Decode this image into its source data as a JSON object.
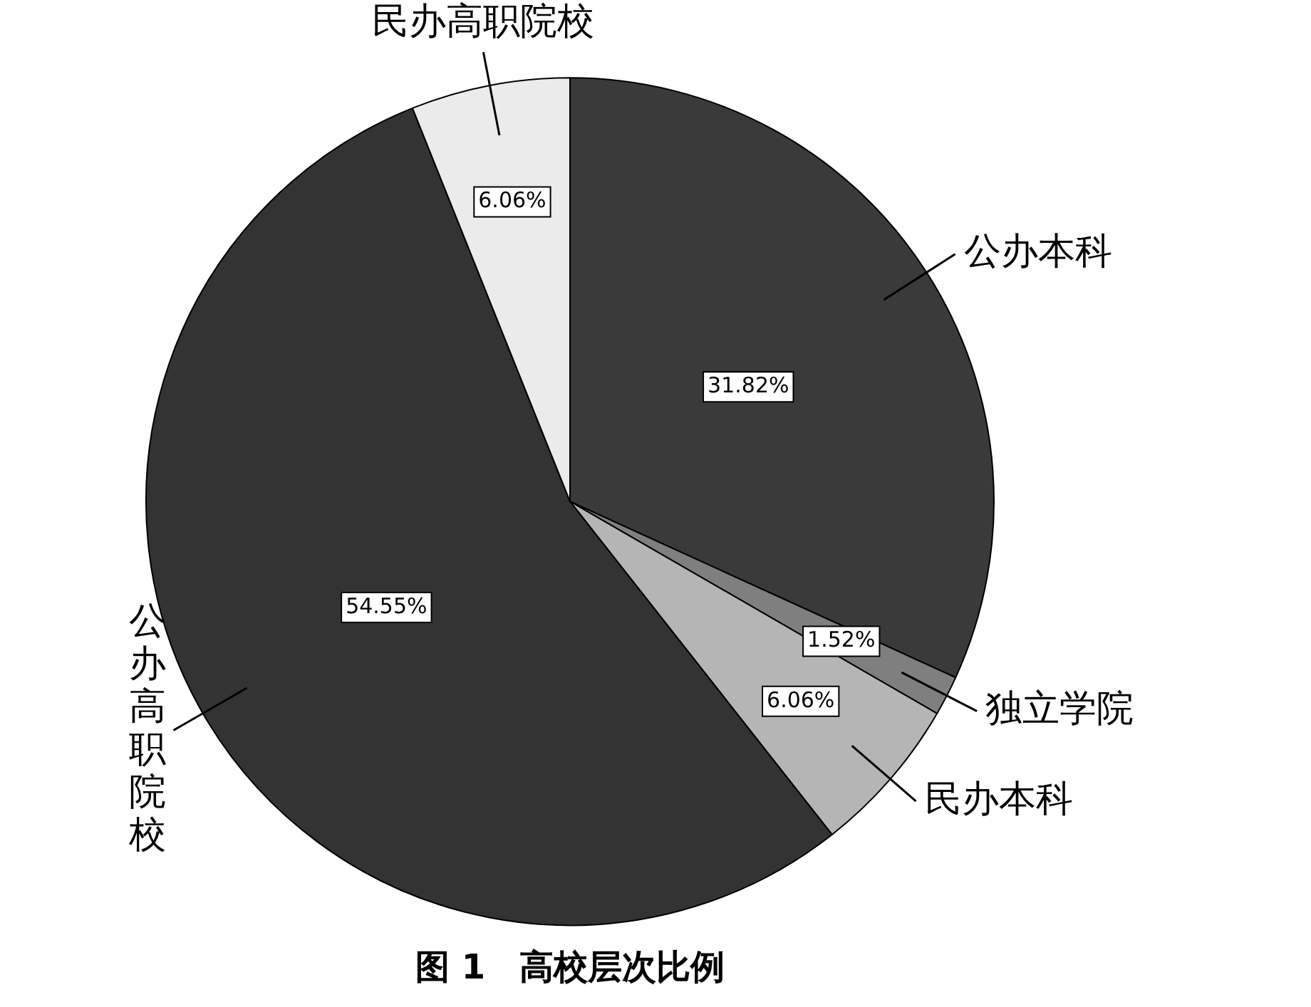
{
  "chart_data": {
    "type": "pie",
    "title": "图 1　高校层次比例",
    "categories": [
      "公办本科",
      "独立学院",
      "民办本科",
      "公办高职院校",
      "民办高职院校"
    ],
    "values": [
      31.82,
      1.52,
      6.06,
      54.55,
      6.06
    ],
    "colors": [
      "#3a3a3a",
      "#7f7f7f",
      "#b5b5b5",
      "#333333",
      "#ebebeb"
    ],
    "value_labels": [
      "31.82%",
      "1.52%",
      "6.06%",
      "54.55%",
      "6.06%"
    ],
    "legend": false
  }
}
